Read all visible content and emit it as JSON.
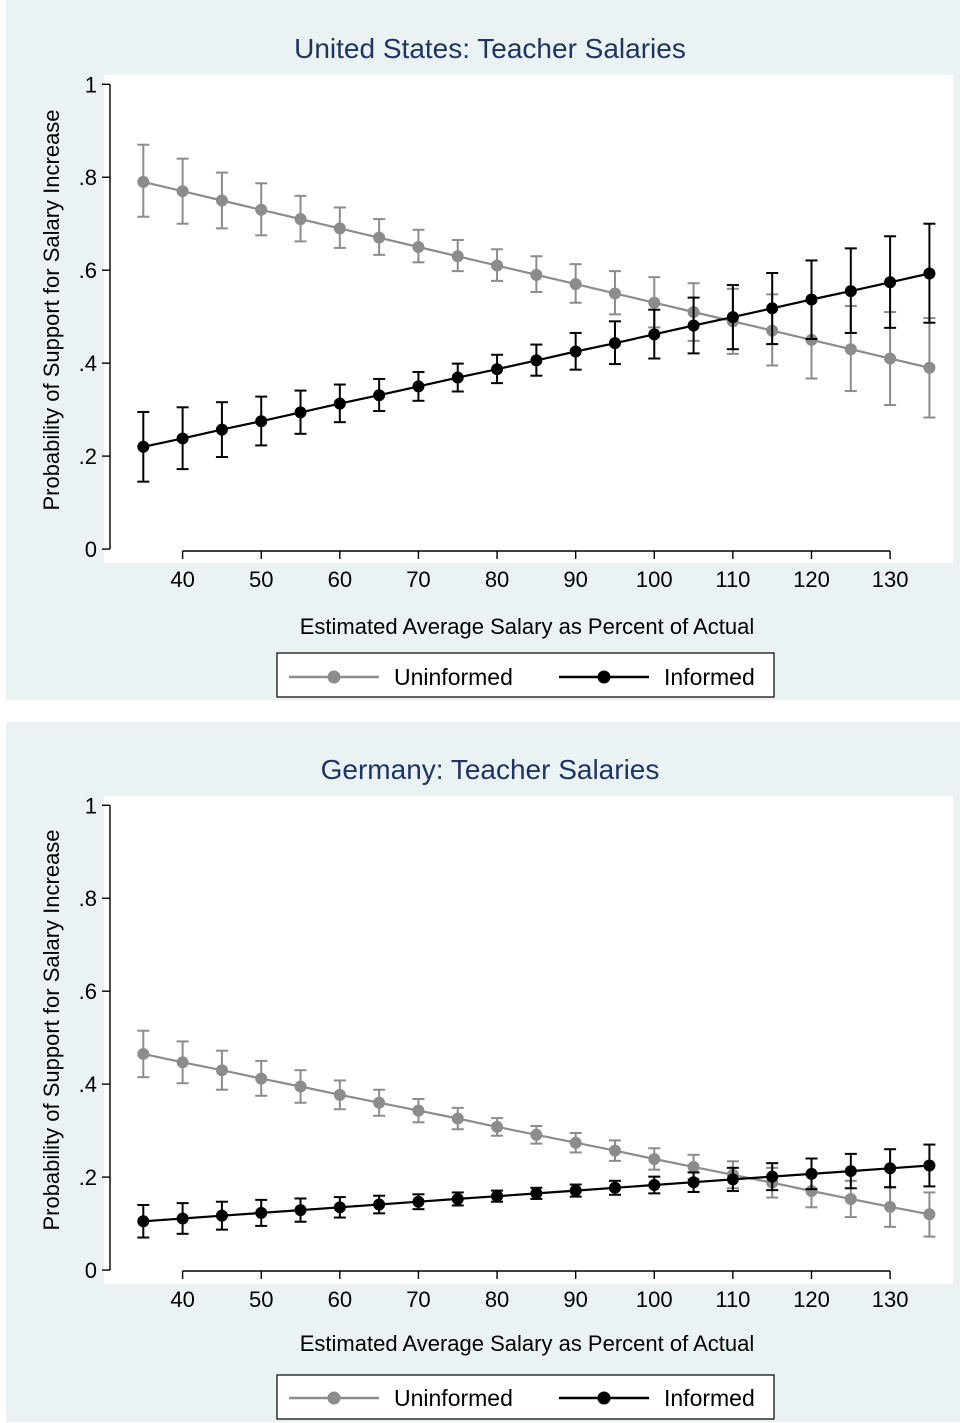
{
  "chart_data": [
    {
      "type": "line",
      "title": "United States: Teacher Salaries",
      "xlabel": "Estimated Average Salary as Percent of Actual",
      "ylabel": "Probability of Support for Salary Increase",
      "xlim": [
        30,
        138
      ],
      "ylim": [
        -0.03,
        1.02
      ],
      "xticks": [
        40,
        50,
        60,
        70,
        80,
        90,
        100,
        110,
        120,
        130
      ],
      "yticks": [
        0,
        0.2,
        0.4,
        0.6,
        0.8,
        1
      ],
      "ytick_labels": [
        "0",
        ".2",
        ".4",
        ".6",
        ".8",
        "1"
      ],
      "grid": false,
      "legend_position": "bottom",
      "x": [
        35,
        40,
        45,
        50,
        55,
        60,
        65,
        70,
        75,
        80,
        85,
        90,
        95,
        100,
        105,
        110,
        115,
        120,
        125,
        130,
        135
      ],
      "series": [
        {
          "name": "Uninformed",
          "color": "#8c8c8c",
          "values": [
            0.79,
            0.77,
            0.75,
            0.73,
            0.71,
            0.69,
            0.67,
            0.65,
            0.63,
            0.61,
            0.59,
            0.57,
            0.55,
            0.53,
            0.51,
            0.49,
            0.47,
            0.45,
            0.43,
            0.41,
            0.39
          ],
          "lower": [
            0.715,
            0.7,
            0.69,
            0.675,
            0.662,
            0.648,
            0.633,
            0.617,
            0.598,
            0.577,
            0.553,
            0.53,
            0.505,
            0.477,
            0.448,
            0.42,
            0.395,
            0.367,
            0.34,
            0.31,
            0.283
          ],
          "upper": [
            0.87,
            0.84,
            0.81,
            0.787,
            0.76,
            0.735,
            0.71,
            0.687,
            0.665,
            0.645,
            0.63,
            0.613,
            0.598,
            0.585,
            0.572,
            0.56,
            0.548,
            0.535,
            0.523,
            0.51,
            0.497
          ]
        },
        {
          "name": "Informed",
          "color": "#000000",
          "values": [
            0.22,
            0.238,
            0.257,
            0.275,
            0.294,
            0.313,
            0.331,
            0.35,
            0.369,
            0.387,
            0.406,
            0.425,
            0.443,
            0.462,
            0.481,
            0.499,
            0.518,
            0.537,
            0.555,
            0.574,
            0.593
          ],
          "lower": [
            0.145,
            0.172,
            0.198,
            0.223,
            0.248,
            0.273,
            0.297,
            0.319,
            0.339,
            0.357,
            0.373,
            0.386,
            0.398,
            0.41,
            0.421,
            0.43,
            0.441,
            0.452,
            0.465,
            0.476,
            0.487
          ],
          "upper": [
            0.295,
            0.305,
            0.316,
            0.328,
            0.341,
            0.354,
            0.366,
            0.381,
            0.399,
            0.418,
            0.44,
            0.465,
            0.49,
            0.515,
            0.541,
            0.568,
            0.594,
            0.621,
            0.647,
            0.673,
            0.7
          ]
        }
      ]
    },
    {
      "type": "line",
      "title": "Germany: Teacher Salaries",
      "xlabel": "Estimated Average Salary as Percent of Actual",
      "ylabel": "Probability of Support for Salary Increase",
      "xlim": [
        30,
        138
      ],
      "ylim": [
        -0.03,
        1.02
      ],
      "xticks": [
        40,
        50,
        60,
        70,
        80,
        90,
        100,
        110,
        120,
        130
      ],
      "yticks": [
        0,
        0.2,
        0.4,
        0.6,
        0.8,
        1
      ],
      "ytick_labels": [
        "0",
        ".2",
        ".4",
        ".6",
        ".8",
        "1"
      ],
      "grid": false,
      "legend_position": "bottom",
      "x": [
        35,
        40,
        45,
        50,
        55,
        60,
        65,
        70,
        75,
        80,
        85,
        90,
        95,
        100,
        105,
        110,
        115,
        120,
        125,
        130,
        135
      ],
      "series": [
        {
          "name": "Uninformed",
          "color": "#8c8c8c",
          "values": [
            0.465,
            0.447,
            0.43,
            0.412,
            0.395,
            0.377,
            0.36,
            0.343,
            0.326,
            0.308,
            0.291,
            0.274,
            0.257,
            0.239,
            0.222,
            0.205,
            0.188,
            0.17,
            0.153,
            0.136,
            0.12
          ],
          "lower": [
            0.415,
            0.402,
            0.388,
            0.375,
            0.36,
            0.346,
            0.332,
            0.318,
            0.303,
            0.289,
            0.272,
            0.253,
            0.235,
            0.216,
            0.196,
            0.176,
            0.156,
            0.135,
            0.114,
            0.093,
            0.072
          ],
          "upper": [
            0.515,
            0.492,
            0.472,
            0.45,
            0.43,
            0.408,
            0.388,
            0.368,
            0.349,
            0.327,
            0.31,
            0.295,
            0.279,
            0.262,
            0.248,
            0.234,
            0.22,
            0.205,
            0.192,
            0.179,
            0.167
          ]
        },
        {
          "name": "Informed",
          "color": "#000000",
          "values": [
            0.105,
            0.111,
            0.117,
            0.123,
            0.129,
            0.135,
            0.141,
            0.147,
            0.153,
            0.159,
            0.165,
            0.171,
            0.177,
            0.183,
            0.189,
            0.195,
            0.201,
            0.207,
            0.213,
            0.219,
            0.225
          ],
          "lower": [
            0.07,
            0.078,
            0.087,
            0.095,
            0.104,
            0.113,
            0.122,
            0.131,
            0.139,
            0.147,
            0.153,
            0.158,
            0.162,
            0.165,
            0.168,
            0.17,
            0.172,
            0.174,
            0.176,
            0.178,
            0.18
          ],
          "upper": [
            0.14,
            0.144,
            0.147,
            0.151,
            0.154,
            0.157,
            0.16,
            0.163,
            0.167,
            0.171,
            0.177,
            0.184,
            0.192,
            0.201,
            0.21,
            0.22,
            0.23,
            0.24,
            0.25,
            0.26,
            0.27
          ]
        }
      ]
    }
  ]
}
